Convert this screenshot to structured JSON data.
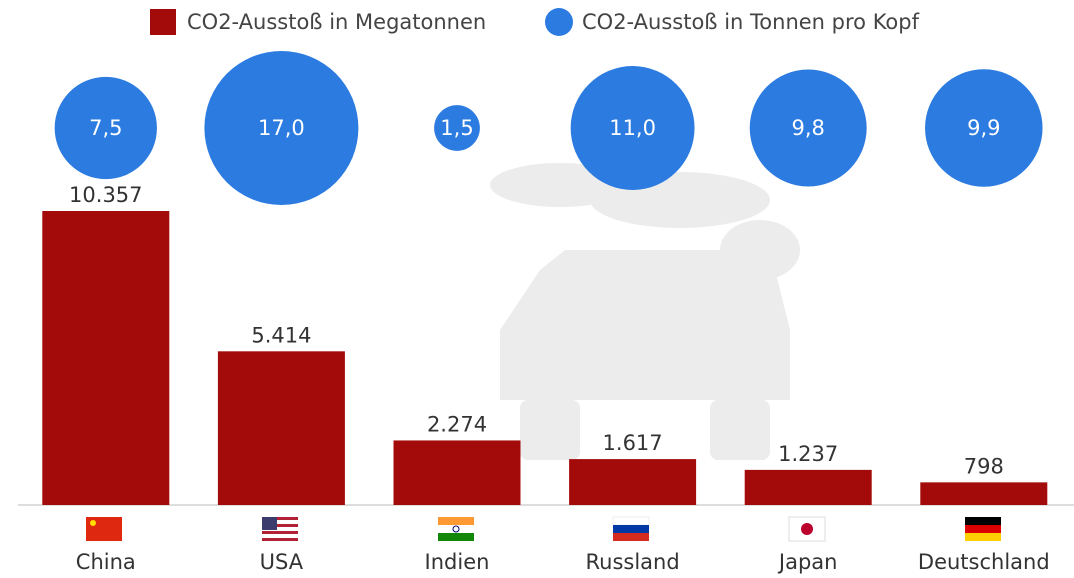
{
  "chart_data": {
    "type": "bar",
    "categories": [
      "China",
      "USA",
      "Indien",
      "Russland",
      "Japan",
      "Deutschland"
    ],
    "series": [
      {
        "name": "CO2-Ausstoß in Megatonnen",
        "type": "bar",
        "color": "#a30b0b",
        "values": [
          10357,
          5414,
          2274,
          1617,
          1237,
          798
        ],
        "value_labels": [
          "10.357",
          "5.414",
          "2.274",
          "1.617",
          "1.237",
          "798"
        ]
      },
      {
        "name": "CO2-Ausstoß in Tonnen pro Kopf",
        "type": "bubble",
        "color": "#2b7be0",
        "values": [
          7.5,
          17.0,
          1.5,
          11.0,
          9.8,
          9.9
        ],
        "value_labels": [
          "7,5",
          "17,0",
          "1,5",
          "11,0",
          "9,8",
          "9,9"
        ]
      }
    ]
  }
}
